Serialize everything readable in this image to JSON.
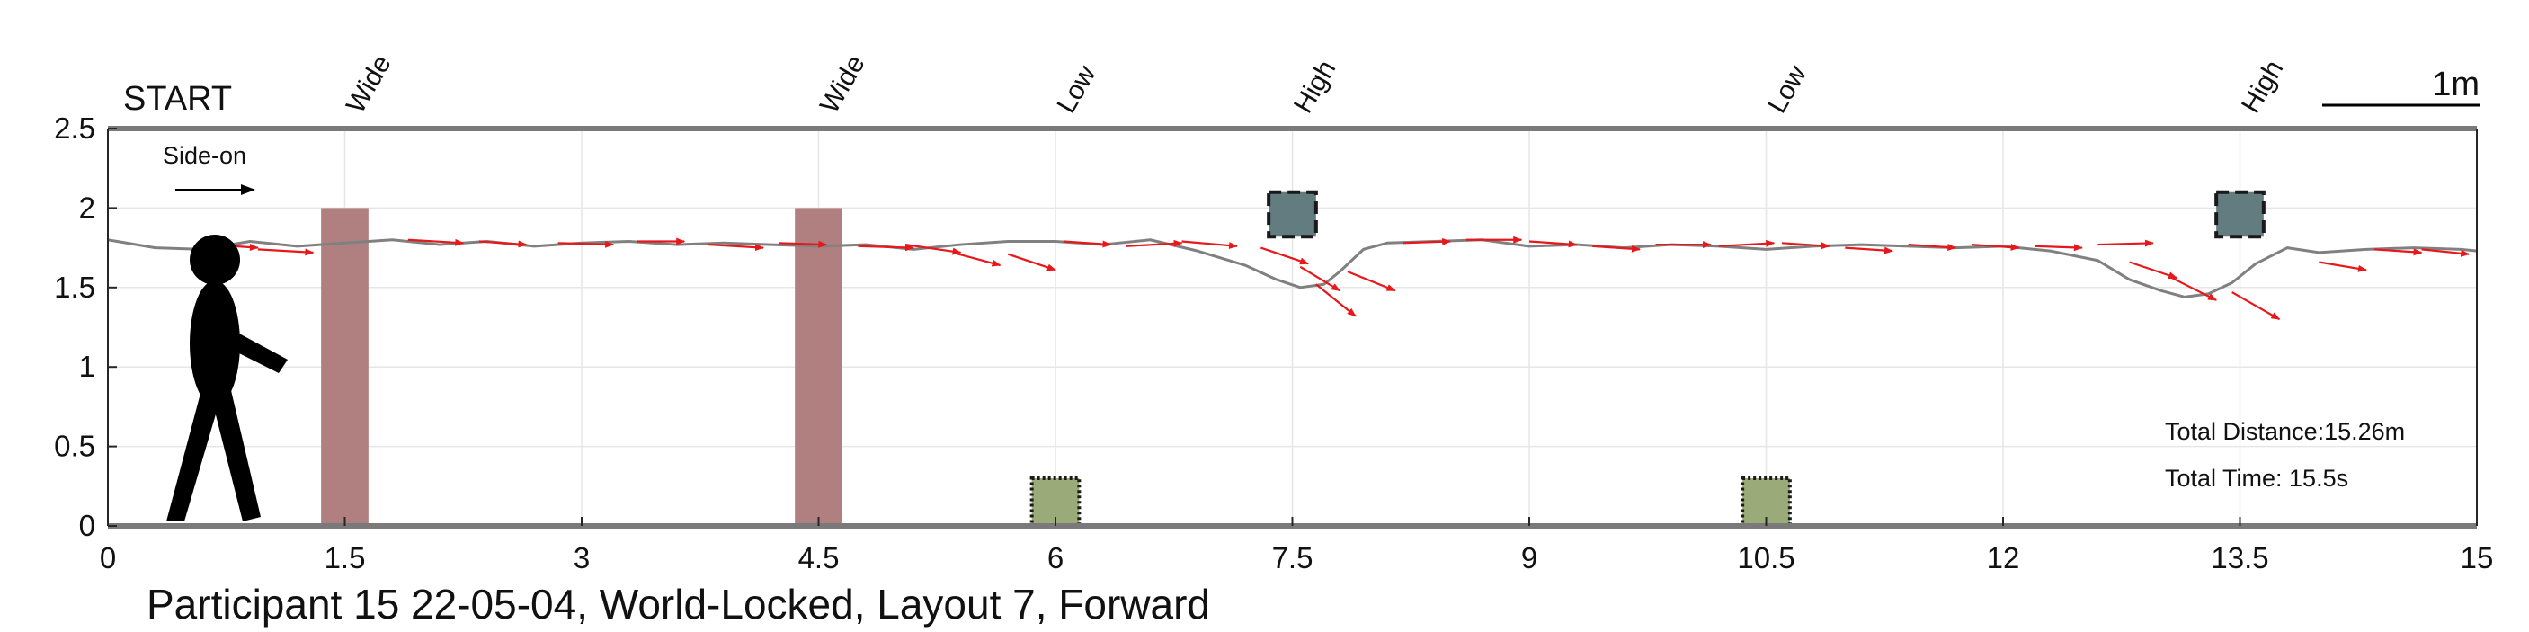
{
  "chart_data": {
    "type": "line",
    "title": "",
    "caption": "Participant 15 22-05-04, World-Locked, Layout 7, Forward",
    "xlabel": "",
    "ylabel": "",
    "xlim": [
      0,
      15
    ],
    "ylim": [
      0,
      2.5
    ],
    "xticks": [
      0,
      1.5,
      3,
      4.5,
      6,
      7.5,
      9,
      10.5,
      12,
      13.5,
      15
    ],
    "xtick_labels": [
      "0",
      "1.5",
      "3",
      "4.5",
      "6",
      "7.5",
      "9",
      "10.5",
      "12",
      "13.5",
      "15"
    ],
    "yticks": [
      0,
      0.5,
      1,
      1.5,
      2,
      2.5
    ],
    "ytick_labels": [
      "0",
      "0.5",
      "1",
      "1.5",
      "2",
      "2.5"
    ],
    "grid": true,
    "start_label": "START",
    "scale_bar_label": "1m",
    "side_on_label": "Side-on",
    "obstacles": [
      {
        "label": "Wide",
        "type": "wide",
        "x": [
          1.35,
          1.65
        ],
        "y": [
          0,
          2.0
        ],
        "color": "#b07f7f"
      },
      {
        "label": "Wide",
        "type": "wide",
        "x": [
          4.35,
          4.65
        ],
        "y": [
          0,
          2.0
        ],
        "color": "#b07f7f"
      },
      {
        "label": "Low",
        "type": "low",
        "x": [
          5.85,
          6.15
        ],
        "y": [
          0,
          0.3
        ],
        "color": "#9aab79"
      },
      {
        "label": "High",
        "type": "high",
        "x": [
          7.35,
          7.65
        ],
        "y": [
          1.82,
          2.1
        ],
        "color": "#637c80"
      },
      {
        "label": "Low",
        "type": "low",
        "x": [
          10.35,
          10.65
        ],
        "y": [
          0,
          0.3
        ],
        "color": "#9aab79"
      },
      {
        "label": "High",
        "type": "high",
        "x": [
          13.35,
          13.65
        ],
        "y": [
          1.82,
          2.1
        ],
        "color": "#637c80"
      }
    ],
    "series": [
      {
        "type": "line",
        "color": "#808080",
        "x": [
          0,
          0.3,
          0.6,
          0.9,
          1.2,
          1.5,
          1.8,
          2.1,
          2.4,
          2.7,
          3.0,
          3.3,
          3.6,
          3.9,
          4.2,
          4.5,
          4.8,
          5.1,
          5.4,
          5.7,
          6.0,
          6.3,
          6.6,
          6.9,
          7.2,
          7.4,
          7.55,
          7.7,
          7.8,
          7.95,
          8.1,
          8.4,
          8.7,
          9.0,
          9.3,
          9.6,
          9.9,
          10.2,
          10.5,
          10.8,
          11.1,
          11.4,
          11.7,
          12.0,
          12.3,
          12.6,
          12.8,
          13.0,
          13.15,
          13.3,
          13.45,
          13.6,
          13.8,
          14.0,
          14.3,
          14.6,
          14.9,
          15.0
        ],
        "y": [
          1.8,
          1.75,
          1.74,
          1.79,
          1.76,
          1.78,
          1.8,
          1.77,
          1.79,
          1.76,
          1.78,
          1.79,
          1.77,
          1.78,
          1.77,
          1.76,
          1.77,
          1.74,
          1.77,
          1.79,
          1.79,
          1.77,
          1.8,
          1.73,
          1.64,
          1.55,
          1.5,
          1.52,
          1.6,
          1.74,
          1.78,
          1.79,
          1.8,
          1.76,
          1.77,
          1.75,
          1.77,
          1.76,
          1.74,
          1.76,
          1.77,
          1.76,
          1.75,
          1.76,
          1.73,
          1.67,
          1.55,
          1.48,
          1.44,
          1.46,
          1.53,
          1.65,
          1.75,
          1.72,
          1.74,
          1.75,
          1.74,
          1.73
        ]
      },
      {
        "type": "arrows",
        "name": "",
        "color": "#e8171a",
        "x": [
          0.65,
          0.95,
          1.9,
          2.35,
          2.85,
          3.35,
          3.8,
          4.25,
          4.75,
          5.05,
          5.35,
          5.7,
          6.05,
          6.45,
          6.8,
          7.3,
          7.55,
          7.65,
          7.85,
          8.2,
          8.6,
          9.0,
          9.4,
          9.8,
          10.2,
          10.6,
          11.0,
          11.4,
          11.8,
          12.2,
          12.6,
          12.8,
          13.05,
          13.45,
          14.0,
          14.35,
          14.65
        ],
        "y": [
          1.77,
          1.74,
          1.8,
          1.79,
          1.78,
          1.79,
          1.77,
          1.78,
          1.76,
          1.77,
          1.72,
          1.71,
          1.79,
          1.76,
          1.79,
          1.75,
          1.63,
          1.52,
          1.6,
          1.78,
          1.8,
          1.79,
          1.76,
          1.77,
          1.76,
          1.78,
          1.75,
          1.77,
          1.77,
          1.76,
          1.77,
          1.66,
          1.57,
          1.47,
          1.66,
          1.74,
          1.74
        ],
        "u": [
          0.3,
          0.35,
          0.35,
          0.3,
          0.35,
          0.3,
          0.35,
          0.3,
          0.35,
          0.35,
          0.3,
          0.3,
          0.3,
          0.35,
          0.35,
          0.3,
          0.25,
          0.25,
          0.3,
          0.3,
          0.35,
          0.3,
          0.3,
          0.35,
          0.35,
          0.3,
          0.3,
          0.3,
          0.3,
          0.3,
          0.35,
          0.3,
          0.3,
          0.3,
          0.3,
          0.3,
          0.3
        ],
        "v": [
          -0.02,
          -0.02,
          -0.02,
          -0.02,
          -0.01,
          0.0,
          -0.02,
          -0.01,
          -0.01,
          -0.05,
          -0.08,
          -0.1,
          -0.02,
          0.02,
          -0.03,
          -0.1,
          -0.15,
          -0.2,
          -0.12,
          0.01,
          0.0,
          -0.02,
          -0.02,
          0.0,
          0.02,
          -0.02,
          -0.02,
          -0.02,
          -0.02,
          -0.01,
          0.01,
          -0.1,
          -0.15,
          -0.17,
          -0.05,
          -0.02,
          -0.03
        ]
      }
    ],
    "annotations": [
      {
        "text": "Total Distance:15.26m"
      },
      {
        "text": "Total Time: 15.5s"
      }
    ]
  }
}
